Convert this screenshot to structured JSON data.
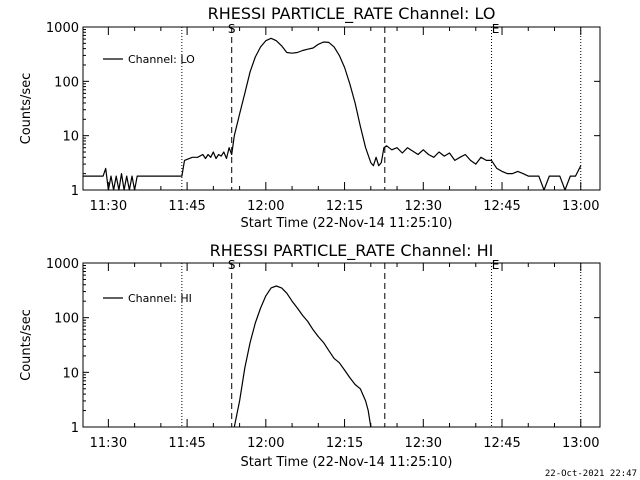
{
  "timestamp": "22-Oct-2021 22:47",
  "chart_data": [
    {
      "type": "line",
      "title": "RHESSI PARTICLE_RATE Channel: LO",
      "xlabel": "Start Time (22-Nov-14 11:25:10)",
      "ylabel": "Counts/sec",
      "xlim": [
        "11:25:10",
        "13:03:40"
      ],
      "ylim": [
        1,
        1000
      ],
      "yscale": "log",
      "xticks": [
        "11:30",
        "11:45",
        "12:00",
        "12:15",
        "12:30",
        "12:45",
        "13:00"
      ],
      "yticks": [
        "1",
        "10",
        "100",
        "1000"
      ],
      "legend": "top-left",
      "markers": {
        "start_label": "S",
        "end_label": "E"
      },
      "vlines": {
        "dashed": [
          "11:53:30",
          "12:22:40"
        ],
        "dotted": [
          "11:44:00",
          "12:43:00",
          "13:00:00"
        ]
      },
      "series": [
        {
          "name": "Channel: LO",
          "x": [
            "11:25:10",
            "11:29:00",
            "11:29:30",
            "11:30:00",
            "11:30:30",
            "11:31:00",
            "11:31:30",
            "11:32:00",
            "11:32:30",
            "11:33:00",
            "11:33:30",
            "11:34:00",
            "11:34:30",
            "11:35:00",
            "11:35:30",
            "11:36:00",
            "11:36:30",
            "11:37:00",
            "11:37:30",
            "11:38:00",
            "11:38:30",
            "11:39:00",
            "11:39:30",
            "11:40:00",
            "11:40:30",
            "11:41:00",
            "11:42:00",
            "11:43:00",
            "11:44:00",
            "11:44:30",
            "11:46:00",
            "11:47:00",
            "11:48:00",
            "11:48:30",
            "11:49:00",
            "11:49:30",
            "11:50:00",
            "11:50:30",
            "11:51:00",
            "11:51:30",
            "11:52:00",
            "11:52:30",
            "11:53:00",
            "11:53:30",
            "11:54:00",
            "11:55:00",
            "11:56:00",
            "11:57:00",
            "11:58:00",
            "11:59:00",
            "12:00:00",
            "12:01:00",
            "12:02:00",
            "12:03:00",
            "12:04:00",
            "12:05:00",
            "12:06:00",
            "12:07:00",
            "12:08:00",
            "12:09:00",
            "12:10:00",
            "12:11:00",
            "12:12:00",
            "12:13:00",
            "12:14:00",
            "12:15:00",
            "12:16:00",
            "12:17:00",
            "12:18:00",
            "12:19:00",
            "12:20:00",
            "12:20:30",
            "12:21:00",
            "12:21:30",
            "12:22:00",
            "12:22:30",
            "12:23:00",
            "12:24:00",
            "12:25:00",
            "12:26:00",
            "12:27:00",
            "12:28:00",
            "12:29:00",
            "12:30:00",
            "12:31:00",
            "12:32:00",
            "12:33:00",
            "12:34:00",
            "12:35:00",
            "12:36:00",
            "12:37:00",
            "12:38:00",
            "12:39:00",
            "12:40:00",
            "12:41:00",
            "12:42:00",
            "12:43:00",
            "12:44:00",
            "12:45:00",
            "12:46:00",
            "12:47:00",
            "12:48:00",
            "12:49:00",
            "12:50:00",
            "12:51:00",
            "12:52:00",
            "12:53:00",
            "12:54:00",
            "12:55:00",
            "12:56:00",
            "12:57:00",
            "12:58:00",
            "12:59:00",
            "13:00:00"
          ],
          "y": [
            1.8,
            1.8,
            2.5,
            1.0,
            1.8,
            1.0,
            1.8,
            1.0,
            2.0,
            1.0,
            1.8,
            1.0,
            1.8,
            1.0,
            1.8,
            1.8,
            1.8,
            1.8,
            1.8,
            1.8,
            1.8,
            1.8,
            1.8,
            1.8,
            1.8,
            1.8,
            1.8,
            1.8,
            1.8,
            3.5,
            4.0,
            4.0,
            4.5,
            3.8,
            4.5,
            4.0,
            5.0,
            3.8,
            4.5,
            4.2,
            5.0,
            3.8,
            6.0,
            4.5,
            10,
            25,
            60,
            150,
            280,
            430,
            560,
            620,
            560,
            450,
            340,
            330,
            340,
            370,
            390,
            410,
            480,
            530,
            520,
            430,
            300,
            180,
            90,
            40,
            15,
            6,
            3.2,
            2.8,
            4.0,
            2.8,
            3.2,
            6.0,
            6.5,
            5.5,
            6.0,
            4.8,
            6.0,
            5.2,
            4.5,
            5.5,
            4.5,
            4.0,
            5.0,
            4.2,
            4.8,
            3.5,
            4.0,
            4.5,
            3.5,
            3.0,
            4.0,
            3.5,
            3.5,
            2.5,
            2.2,
            2.0,
            2.0,
            2.2,
            2.0,
            1.8,
            1.8,
            1.8,
            1.0,
            1.8,
            1.8,
            1.8,
            1.0,
            1.8,
            1.8,
            2.8
          ]
        }
      ]
    },
    {
      "type": "line",
      "title": "RHESSI PARTICLE_RATE Channel: HI",
      "xlabel": "Start Time (22-Nov-14 11:25:10)",
      "ylabel": "Counts/sec",
      "xlim": [
        "11:25:10",
        "13:03:40"
      ],
      "ylim": [
        1,
        1000
      ],
      "yscale": "log",
      "xticks": [
        "11:30",
        "11:45",
        "12:00",
        "12:15",
        "12:30",
        "12:45",
        "13:00"
      ],
      "yticks": [
        "1",
        "10",
        "100",
        "1000"
      ],
      "legend": "top-left",
      "markers": {
        "start_label": "S",
        "end_label": "E"
      },
      "vlines": {
        "dashed": [
          "11:53:30",
          "12:22:40"
        ],
        "dotted": [
          "11:44:00",
          "12:43:00",
          "13:00:00"
        ]
      },
      "series": [
        {
          "name": "Channel: HI",
          "x": [
            "11:54:00",
            "11:55:00",
            "11:56:00",
            "11:57:00",
            "11:58:00",
            "11:59:00",
            "12:00:00",
            "12:01:00",
            "12:02:00",
            "12:03:00",
            "12:04:00",
            "12:05:00",
            "12:06:00",
            "12:07:00",
            "12:08:00",
            "12:09:00",
            "12:10:00",
            "12:11:00",
            "12:12:00",
            "12:13:00",
            "12:14:00",
            "12:15:00",
            "12:16:00",
            "12:17:00",
            "12:18:00",
            "12:19:00",
            "12:19:30",
            "12:20:00"
          ],
          "y": [
            1.0,
            3.0,
            12,
            35,
            80,
            150,
            250,
            350,
            380,
            350,
            280,
            200,
            150,
            110,
            85,
            60,
            45,
            35,
            25,
            18,
            15,
            11,
            8,
            6,
            5,
            3,
            2,
            1.0
          ]
        }
      ]
    }
  ]
}
